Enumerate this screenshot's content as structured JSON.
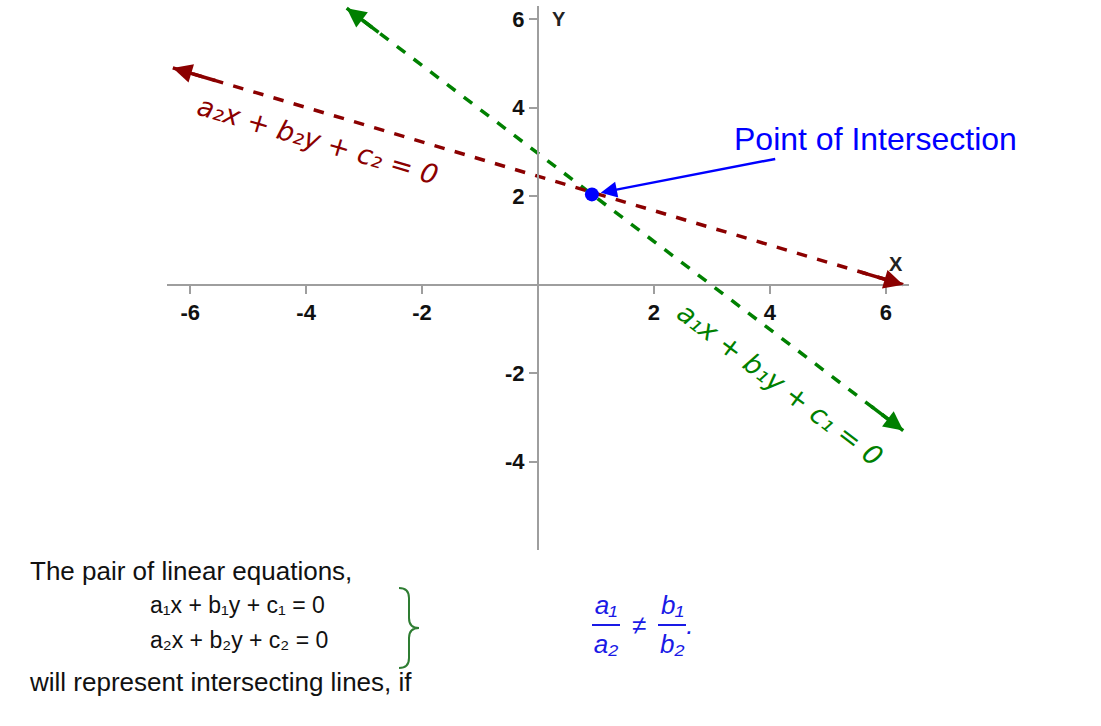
{
  "chart_data": {
    "type": "line",
    "xlim": [
      -6.4,
      6.4
    ],
    "ylim": [
      -6,
      6.3
    ],
    "xticks": [
      -6,
      -4,
      -2,
      2,
      4,
      6
    ],
    "yticks": [
      -4,
      -2,
      2,
      4,
      6
    ],
    "xlabel": "X",
    "ylabel": "Y",
    "grid": false,
    "series": [
      {
        "name": "a₁x + b₁y + c₁ = 0",
        "color": "#008000",
        "line_style": "dashed",
        "marker": "arrow",
        "x": [
          -3.3,
          6.3
        ],
        "values": [
          6.25,
          -3.3
        ]
      },
      {
        "name": "a₂x + b₂y + c₂ = 0",
        "color": "#8b0000",
        "line_style": "dashed",
        "marker": "arrow",
        "x": [
          -6.3,
          6.3
        ],
        "values": [
          4.9,
          0
        ]
      },
      {
        "name": "Point of Intersection",
        "type": "scatter",
        "marker": "circle",
        "color": "#0000ff",
        "x": [
          0.93
        ],
        "values": [
          2.04
        ]
      }
    ]
  },
  "caption": {
    "intro": "The pair of linear equations,",
    "equations": [
      "a₁x + b₁y + c₁ = 0",
      "a₂x + b₂y + c₂ = 0"
    ],
    "conclusion": "will represent intersecting lines, if",
    "condition": {
      "left_numerator": "a₁",
      "left_denominator": "a₂",
      "relation": "≠",
      "right_numerator": "b₁",
      "right_denominator": "b₂",
      "end": "."
    }
  }
}
